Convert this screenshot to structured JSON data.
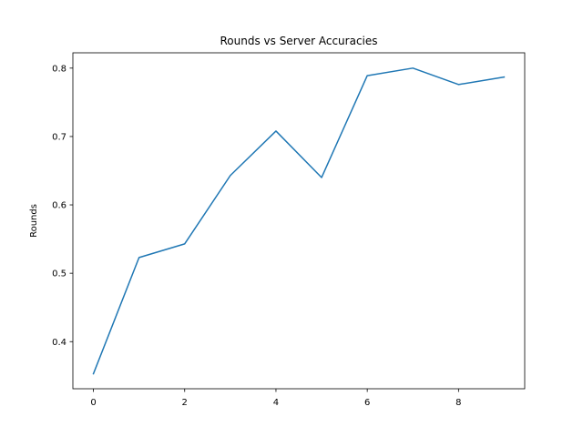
{
  "chart_data": {
    "type": "line",
    "title": "Rounds vs Server Accuracies",
    "xlabel": "",
    "ylabel": "Rounds",
    "x": [
      0,
      1,
      2,
      3,
      4,
      5,
      6,
      7,
      8,
      9
    ],
    "series": [
      {
        "values": [
          0.353,
          0.523,
          0.543,
          0.643,
          0.708,
          0.64,
          0.789,
          0.8,
          0.776,
          0.787
        ]
      }
    ],
    "xlim": [
      -0.45,
      9.45
    ],
    "ylim": [
      0.3311,
      0.8224
    ],
    "xticks": [
      0,
      2,
      4,
      6,
      8
    ],
    "xtick_labels": [
      "0",
      "2",
      "4",
      "6",
      "8"
    ],
    "yticks": [
      0.4,
      0.5,
      0.6,
      0.7,
      0.8
    ],
    "ytick_labels": [
      "0.4",
      "0.5",
      "0.6",
      "0.7",
      "0.8"
    ],
    "grid": false,
    "legend": "none",
    "line_color": "#1f77b4"
  }
}
